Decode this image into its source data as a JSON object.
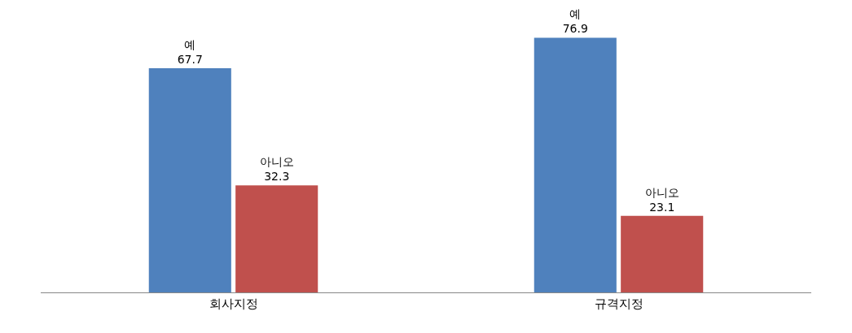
{
  "chart_data": {
    "type": "bar",
    "categories": [
      "회사지정",
      "규격지정"
    ],
    "series": [
      {
        "name": "예",
        "color": "#4f81bd",
        "values": [
          67.7,
          76.9
        ]
      },
      {
        "name": "아니오",
        "color": "#c0504d",
        "values": [
          32.3,
          23.1
        ]
      }
    ],
    "data_labels": true
  }
}
